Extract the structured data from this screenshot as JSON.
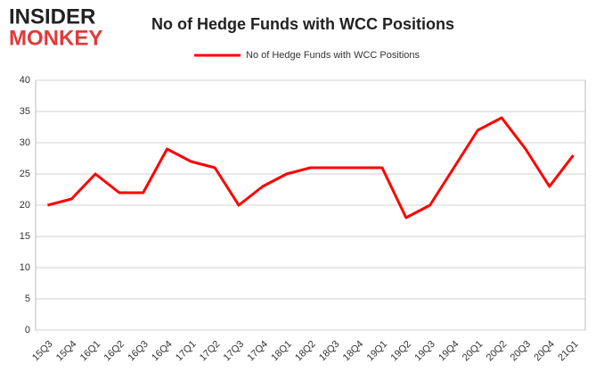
{
  "logo": {
    "line1": "INSIDER",
    "line2": "MONKEY"
  },
  "chart_data": {
    "type": "line",
    "title": "No of Hedge Funds with WCC Positions",
    "categories": [
      "15Q3",
      "15Q4",
      "16Q1",
      "16Q2",
      "16Q3",
      "16Q4",
      "17Q1",
      "17Q2",
      "17Q3",
      "17Q4",
      "18Q1",
      "18Q2",
      "18Q3",
      "18Q4",
      "19Q1",
      "19Q2",
      "19Q3",
      "19Q4",
      "20Q1",
      "20Q2",
      "20Q3",
      "20Q4",
      "21Q1"
    ],
    "series": [
      {
        "name": "No of Hedge Funds with WCC Positions",
        "color": "#ff0000",
        "values": [
          20,
          21,
          25,
          22,
          22,
          29,
          27,
          26,
          20,
          23,
          25,
          26,
          26,
          26,
          26,
          18,
          20,
          26,
          32,
          34,
          29,
          23,
          28
        ]
      }
    ],
    "ylim": [
      0,
      40
    ],
    "yticks": [
      0,
      5,
      10,
      15,
      20,
      25,
      30,
      35,
      40
    ],
    "grid": true,
    "legend": "top"
  }
}
